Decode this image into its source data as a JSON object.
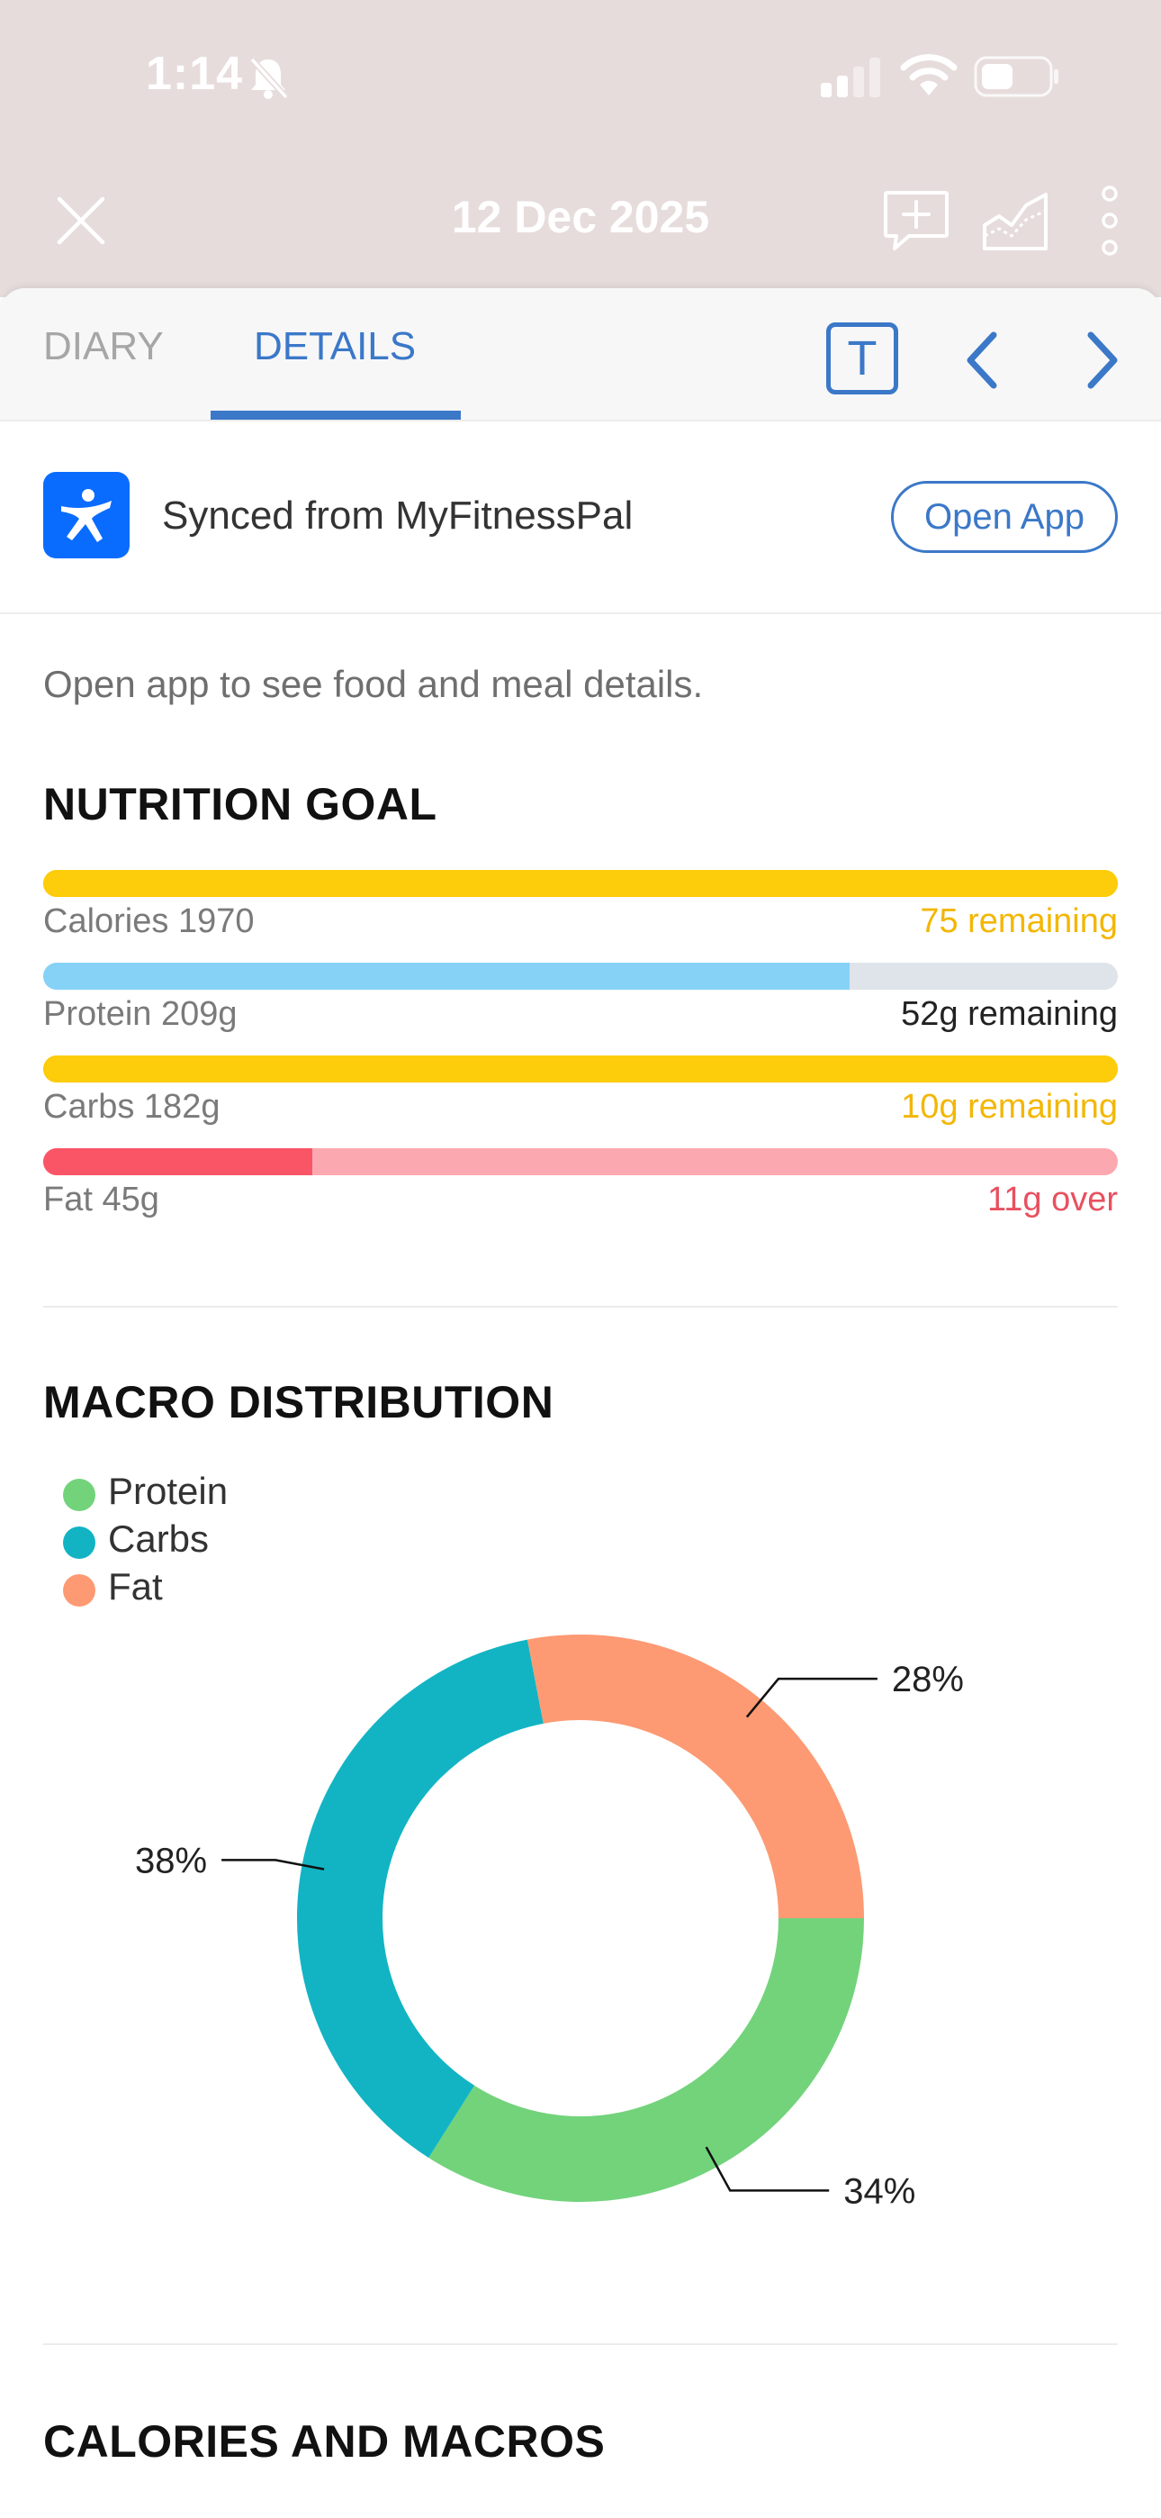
{
  "status_bar": {
    "time": "1:14",
    "icons": [
      "bell-slash-icon",
      "cellular-signal-icon",
      "wifi-icon",
      "battery-icon"
    ]
  },
  "header": {
    "title": "12 Dec 2025",
    "icons": [
      "close-icon",
      "add-comment-icon",
      "chart-icon",
      "more-vertical-icon"
    ]
  },
  "tabs": {
    "diary": "DIARY",
    "details": "DETAILS",
    "active": "DETAILS",
    "toggle_label": "T"
  },
  "sync": {
    "text": "Synced from MyFitnessPal",
    "button": "Open App"
  },
  "hint": "Open app to see food and meal details.",
  "nutrition_goal": {
    "title": "NUTRITION GOAL",
    "items": [
      {
        "label": "Calories 1970",
        "status": "75 remaining",
        "progress": 1.0,
        "fill_color": "#fdcc0a",
        "track_color": "#fdcc0a",
        "status_color": "#f2b705"
      },
      {
        "label": "Protein 209g",
        "status": "52g remaining",
        "progress": 0.75,
        "fill_color": "#86d2f7",
        "track_color": "#dfe3ea",
        "status_color": "#222222"
      },
      {
        "label": "Carbs 182g",
        "status": "10g remaining",
        "progress": 1.0,
        "fill_color": "#fdcc0a",
        "track_color": "#fdcc0a",
        "status_color": "#f2b705"
      },
      {
        "label": "Fat 45g",
        "status": "11g over",
        "progress": 0.25,
        "fill_color": "#fa5566",
        "track_color": "#fca8b0",
        "status_color": "#e8505f"
      }
    ]
  },
  "macro_distribution": {
    "title": "MACRO DISTRIBUTION"
  },
  "calories_macros": {
    "title": "CALORIES AND MACROS"
  },
  "chart_data": {
    "type": "pie",
    "donut": true,
    "legend": "top-left",
    "categories": [
      "Protein",
      "Carbs",
      "Fat"
    ],
    "values": [
      34,
      38,
      28
    ],
    "labels": [
      "34%",
      "38%",
      "28%"
    ],
    "colors": [
      "#72d37b",
      "#12b4c4",
      "#fd9a73"
    ]
  }
}
